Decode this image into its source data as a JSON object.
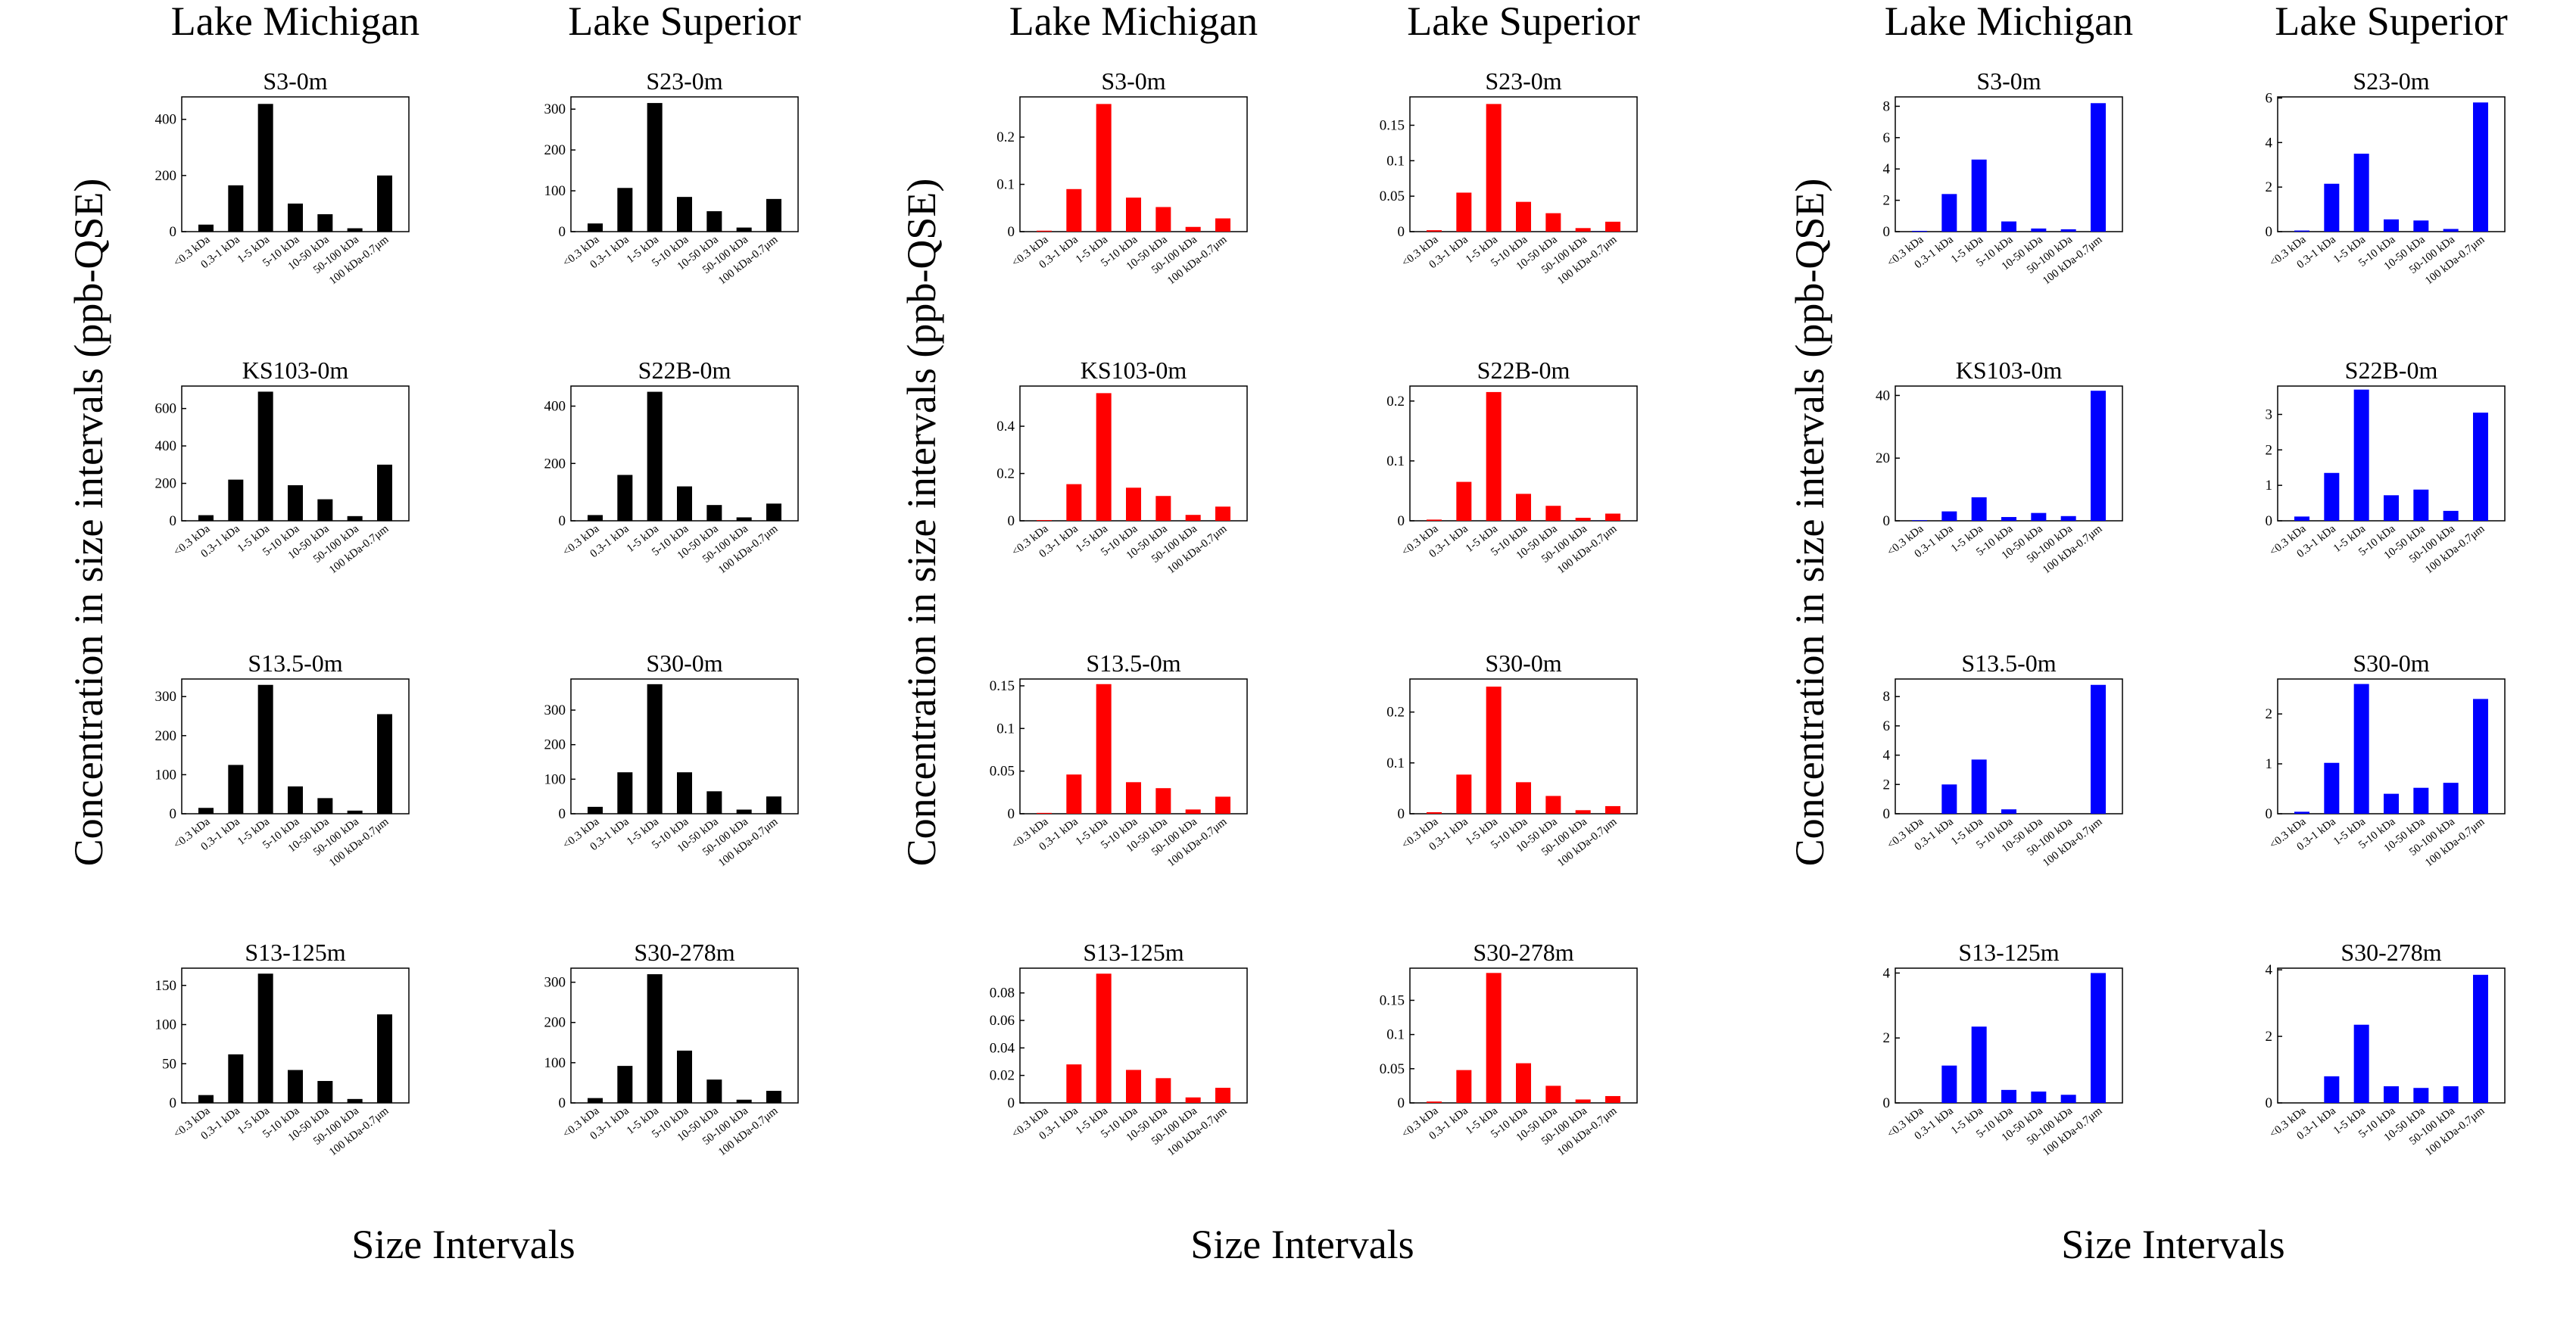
{
  "groups": [
    {
      "col_headers": [
        "Lake Michigan",
        "Lake Superior"
      ],
      "ylabel": "Concentration in size intervals (ppb-QSE)",
      "xlabel": "Size Intervals"
    },
    {
      "col_headers": [
        "Lake Michigan",
        "Lake Superior"
      ],
      "ylabel": "Concentration in size intervals (ppb-QSE)",
      "xlabel": "Size Intervals"
    },
    {
      "col_headers": [
        "Lake Michigan",
        "Lake Superior"
      ],
      "ylabel": "Concentration in size intervals (ppb-QSE)",
      "xlabel": "Size Intervals"
    }
  ],
  "colors": {
    "group1": "#000000",
    "group2": "#ff0000",
    "group3": "#0000ff"
  },
  "chart_data": [
    {
      "type": "bar",
      "group": 1,
      "lake": "Lake Michigan",
      "title": "S3-0m",
      "categories": [
        "<0.3 kDa",
        "0.3-1 kDa",
        "1-5 kDa",
        "5-10 kDa",
        "10-50 kDa",
        "50-100 kDa",
        "100 kDa-0.7μm"
      ],
      "values": [
        25,
        165,
        455,
        100,
        62,
        12,
        200
      ],
      "ylim": [
        0,
        480
      ],
      "yticks": [
        0,
        200,
        400
      ],
      "ytick_labels": [
        "0",
        "200",
        "400"
      ]
    },
    {
      "type": "bar",
      "group": 1,
      "lake": "Lake Superior",
      "title": "S23-0m",
      "categories": [
        "<0.3 kDa",
        "0.3-1 kDa",
        "1-5 kDa",
        "5-10 kDa",
        "10-50 kDa",
        "50-100 kDa",
        "100 kDa-0.7μm"
      ],
      "values": [
        20,
        107,
        315,
        85,
        50,
        10,
        80
      ],
      "ylim": [
        0,
        330
      ],
      "yticks": [
        0,
        100,
        200,
        300
      ],
      "ytick_labels": [
        "0",
        "100",
        "200",
        "300"
      ]
    },
    {
      "type": "bar",
      "group": 1,
      "lake": "Lake Michigan",
      "title": "KS103-0m",
      "categories": [
        "<0.3 kDa",
        "0.3-1 kDa",
        "1-5 kDa",
        "5-10 kDa",
        "10-50 kDa",
        "50-100 kDa",
        "100 kDa-0.7μm"
      ],
      "values": [
        30,
        220,
        690,
        190,
        115,
        25,
        300
      ],
      "ylim": [
        0,
        720
      ],
      "yticks": [
        0,
        200,
        400,
        600
      ],
      "ytick_labels": [
        "0",
        "200",
        "400",
        "600"
      ]
    },
    {
      "type": "bar",
      "group": 1,
      "lake": "Lake Superior",
      "title": "S22B-0m",
      "categories": [
        "<0.3 kDa",
        "0.3-1 kDa",
        "1-5 kDa",
        "5-10 kDa",
        "10-50 kDa",
        "50-100 kDa",
        "100 kDa-0.7μm"
      ],
      "values": [
        20,
        160,
        450,
        120,
        55,
        12,
        60
      ],
      "ylim": [
        0,
        470
      ],
      "yticks": [
        0,
        200,
        400
      ],
      "ytick_labels": [
        "0",
        "200",
        "400"
      ]
    },
    {
      "type": "bar",
      "group": 1,
      "lake": "Lake Michigan",
      "title": "S13.5-0m",
      "categories": [
        "<0.3 kDa",
        "0.3-1 kDa",
        "1-5 kDa",
        "5-10 kDa",
        "10-50 kDa",
        "50-100 kDa",
        "100 kDa-0.7μm"
      ],
      "values": [
        15,
        125,
        330,
        70,
        40,
        8,
        255
      ],
      "ylim": [
        0,
        345
      ],
      "yticks": [
        0,
        100,
        200,
        300
      ],
      "ytick_labels": [
        "0",
        "100",
        "200",
        "300"
      ]
    },
    {
      "type": "bar",
      "group": 1,
      "lake": "Lake Superior",
      "title": "S30-0m",
      "categories": [
        "<0.3 kDa",
        "0.3-1 kDa",
        "1-5 kDa",
        "5-10 kDa",
        "10-50 kDa",
        "50-100 kDa",
        "100 kDa-0.7μm"
      ],
      "values": [
        20,
        120,
        375,
        120,
        65,
        12,
        50
      ],
      "ylim": [
        0,
        390
      ],
      "yticks": [
        0,
        100,
        200,
        300
      ],
      "ytick_labels": [
        "0",
        "100",
        "200",
        "300"
      ]
    },
    {
      "type": "bar",
      "group": 1,
      "lake": "Lake Michigan",
      "title": "S13-125m",
      "categories": [
        "<0.3 kDa",
        "0.3-1 kDa",
        "1-5 kDa",
        "5-10 kDa",
        "10-50 kDa",
        "50-100 kDa",
        "100 kDa-0.7μm"
      ],
      "values": [
        10,
        62,
        165,
        42,
        28,
        5,
        113
      ],
      "ylim": [
        0,
        172
      ],
      "yticks": [
        0,
        50,
        100,
        150
      ],
      "ytick_labels": [
        "0",
        "50",
        "100",
        "150"
      ]
    },
    {
      "type": "bar",
      "group": 1,
      "lake": "Lake Superior",
      "title": "S30-278m",
      "categories": [
        "<0.3 kDa",
        "0.3-1 kDa",
        "1-5 kDa",
        "5-10 kDa",
        "10-50 kDa",
        "50-100 kDa",
        "100 kDa-0.7μm"
      ],
      "values": [
        12,
        92,
        320,
        130,
        58,
        8,
        30
      ],
      "ylim": [
        0,
        335
      ],
      "yticks": [
        0,
        100,
        200,
        300
      ],
      "ytick_labels": [
        "0",
        "100",
        "200",
        "300"
      ]
    },
    {
      "type": "bar",
      "group": 2,
      "lake": "Lake Michigan",
      "title": "S3-0m",
      "categories": [
        "<0.3 kDa",
        "0.3-1 kDa",
        "1-5 kDa",
        "5-10 kDa",
        "10-50 kDa",
        "50-100 kDa",
        "100 kDa-0.7μm"
      ],
      "values": [
        0.002,
        0.09,
        0.27,
        0.072,
        0.052,
        0.01,
        0.028
      ],
      "ylim": [
        0,
        0.285
      ],
      "yticks": [
        0,
        0.1,
        0.2
      ],
      "ytick_labels": [
        "0",
        "0.1",
        "0.2"
      ]
    },
    {
      "type": "bar",
      "group": 2,
      "lake": "Lake Superior",
      "title": "S23-0m",
      "categories": [
        "<0.3 kDa",
        "0.3-1 kDa",
        "1-5 kDa",
        "5-10 kDa",
        "10-50 kDa",
        "50-100 kDa",
        "100 kDa-0.7μm"
      ],
      "values": [
        0.002,
        0.055,
        0.18,
        0.042,
        0.026,
        0.005,
        0.014
      ],
      "ylim": [
        0,
        0.19
      ],
      "yticks": [
        0,
        0.05,
        0.1,
        0.15
      ],
      "ytick_labels": [
        "0",
        "0.05",
        "0.1",
        "0.15"
      ]
    },
    {
      "type": "bar",
      "group": 2,
      "lake": "Lake Michigan",
      "title": "KS103-0m",
      "categories": [
        "<0.3 kDa",
        "0.3-1 kDa",
        "1-5 kDa",
        "5-10 kDa",
        "10-50 kDa",
        "50-100 kDa",
        "100 kDa-0.7μm"
      ],
      "values": [
        0.003,
        0.155,
        0.54,
        0.14,
        0.105,
        0.025,
        0.06
      ],
      "ylim": [
        0,
        0.57
      ],
      "yticks": [
        0,
        0.2,
        0.4
      ],
      "ytick_labels": [
        "0",
        "0.2",
        "0.4"
      ]
    },
    {
      "type": "bar",
      "group": 2,
      "lake": "Lake Superior",
      "title": "S22B-0m",
      "categories": [
        "<0.3 kDa",
        "0.3-1 kDa",
        "1-5 kDa",
        "5-10 kDa",
        "10-50 kDa",
        "50-100 kDa",
        "100 kDa-0.7μm"
      ],
      "values": [
        0.002,
        0.065,
        0.215,
        0.045,
        0.025,
        0.005,
        0.012
      ],
      "ylim": [
        0,
        0.225
      ],
      "yticks": [
        0,
        0.1,
        0.2
      ],
      "ytick_labels": [
        "0",
        "0.1",
        "0.2"
      ]
    },
    {
      "type": "bar",
      "group": 2,
      "lake": "Lake Michigan",
      "title": "S13.5-0m",
      "categories": [
        "<0.3 kDa",
        "0.3-1 kDa",
        "1-5 kDa",
        "5-10 kDa",
        "10-50 kDa",
        "50-100 kDa",
        "100 kDa-0.7μm"
      ],
      "values": [
        0.001,
        0.046,
        0.152,
        0.037,
        0.03,
        0.005,
        0.02
      ],
      "ylim": [
        0,
        0.158
      ],
      "yticks": [
        0,
        0.05,
        0.1,
        0.15
      ],
      "ytick_labels": [
        "0",
        "0.05",
        "0.1",
        "0.15"
      ]
    },
    {
      "type": "bar",
      "group": 2,
      "lake": "Lake Superior",
      "title": "S30-0m",
      "categories": [
        "<0.3 kDa",
        "0.3-1 kDa",
        "1-5 kDa",
        "5-10 kDa",
        "10-50 kDa",
        "50-100 kDa",
        "100 kDa-0.7μm"
      ],
      "values": [
        0.003,
        0.077,
        0.25,
        0.062,
        0.035,
        0.007,
        0.015
      ],
      "ylim": [
        0,
        0.265
      ],
      "yticks": [
        0,
        0.1,
        0.2
      ],
      "ytick_labels": [
        "0",
        "0.1",
        "0.2"
      ]
    },
    {
      "type": "bar",
      "group": 2,
      "lake": "Lake Michigan",
      "title": "S13-125m",
      "categories": [
        "<0.3 kDa",
        "0.3-1 kDa",
        "1-5 kDa",
        "5-10 kDa",
        "10-50 kDa",
        "50-100 kDa",
        "100 kDa-0.7μm"
      ],
      "values": [
        0,
        0.028,
        0.094,
        0.024,
        0.018,
        0.004,
        0.011
      ],
      "ylim": [
        0,
        0.098
      ],
      "yticks": [
        0,
        0.02,
        0.04,
        0.06,
        0.08
      ],
      "ytick_labels": [
        "0",
        "0.02",
        "0.04",
        "0.06",
        "0.08"
      ]
    },
    {
      "type": "bar",
      "group": 2,
      "lake": "Lake Superior",
      "title": "S30-278m",
      "categories": [
        "<0.3 kDa",
        "0.3-1 kDa",
        "1-5 kDa",
        "5-10 kDa",
        "10-50 kDa",
        "50-100 kDa",
        "100 kDa-0.7μm"
      ],
      "values": [
        0.002,
        0.048,
        0.19,
        0.058,
        0.025,
        0.005,
        0.01
      ],
      "ylim": [
        0,
        0.197
      ],
      "yticks": [
        0,
        0.05,
        0.1,
        0.15
      ],
      "ytick_labels": [
        "0",
        "0.05",
        "0.1",
        "0.15"
      ]
    },
    {
      "type": "bar",
      "group": 3,
      "lake": "Lake Michigan",
      "title": "S3-0m",
      "categories": [
        "<0.3 kDa",
        "0.3-1 kDa",
        "1-5 kDa",
        "5-10 kDa",
        "10-50 kDa",
        "50-100 kDa",
        "100 kDa-0.7μm"
      ],
      "values": [
        0.05,
        2.4,
        4.6,
        0.65,
        0.2,
        0.15,
        8.2
      ],
      "ylim": [
        0,
        8.6
      ],
      "yticks": [
        0,
        2,
        4,
        6,
        8
      ],
      "ytick_labels": [
        "0",
        "2",
        "4",
        "6",
        "8"
      ]
    },
    {
      "type": "bar",
      "group": 3,
      "lake": "Lake Superior",
      "title": "S23-0m",
      "categories": [
        "<0.3 kDa",
        "0.3-1 kDa",
        "1-5 kDa",
        "5-10 kDa",
        "10-50 kDa",
        "50-100 kDa",
        "100 kDa-0.7μm"
      ],
      "values": [
        0.05,
        2.15,
        3.5,
        0.55,
        0.5,
        0.12,
        5.8
      ],
      "ylim": [
        0,
        6.05
      ],
      "yticks": [
        0,
        2,
        4,
        6
      ],
      "ytick_labels": [
        "0",
        "2",
        "4",
        "6"
      ]
    },
    {
      "type": "bar",
      "group": 3,
      "lake": "Lake Michigan",
      "title": "KS103-0m",
      "categories": [
        "<0.3 kDa",
        "0.3-1 kDa",
        "1-5 kDa",
        "5-10 kDa",
        "10-50 kDa",
        "50-100 kDa",
        "100 kDa-0.7μm"
      ],
      "values": [
        0.2,
        3,
        7.5,
        1.2,
        2.5,
        1.5,
        41.5
      ],
      "ylim": [
        0,
        43
      ],
      "yticks": [
        0,
        20,
        40
      ],
      "ytick_labels": [
        "0",
        "20",
        "40"
      ]
    },
    {
      "type": "bar",
      "group": 3,
      "lake": "Lake Superior",
      "title": "S22B-0m",
      "categories": [
        "<0.3 kDa",
        "0.3-1 kDa",
        "1-5 kDa",
        "5-10 kDa",
        "10-50 kDa",
        "50-100 kDa",
        "100 kDa-0.7μm"
      ],
      "values": [
        0.12,
        1.35,
        3.7,
        0.72,
        0.88,
        0.28,
        3.05
      ],
      "ylim": [
        0,
        3.8
      ],
      "yticks": [
        0,
        1,
        2,
        3
      ],
      "ytick_labels": [
        "0",
        "1",
        "2",
        "3"
      ]
    },
    {
      "type": "bar",
      "group": 3,
      "lake": "Lake Michigan",
      "title": "S13.5-0m",
      "categories": [
        "<0.3 kDa",
        "0.3-1 kDa",
        "1-5 kDa",
        "5-10 kDa",
        "10-50 kDa",
        "50-100 kDa",
        "100 kDa-0.7μm"
      ],
      "values": [
        0,
        2,
        3.7,
        0.3,
        0,
        0,
        8.8
      ],
      "ylim": [
        0,
        9.2
      ],
      "yticks": [
        0,
        2,
        4,
        6,
        8
      ],
      "ytick_labels": [
        "0",
        "2",
        "4",
        "6",
        "8"
      ]
    },
    {
      "type": "bar",
      "group": 3,
      "lake": "Lake Superior",
      "title": "S30-0m",
      "categories": [
        "<0.3 kDa",
        "0.3-1 kDa",
        "1-5 kDa",
        "5-10 kDa",
        "10-50 kDa",
        "50-100 kDa",
        "100 kDa-0.7μm"
      ],
      "values": [
        0.04,
        1.02,
        2.6,
        0.4,
        0.52,
        0.62,
        2.3
      ],
      "ylim": [
        0,
        2.7
      ],
      "yticks": [
        0,
        1,
        2
      ],
      "ytick_labels": [
        "0",
        "1",
        "2"
      ]
    },
    {
      "type": "bar",
      "group": 3,
      "lake": "Lake Michigan",
      "title": "S13-125m",
      "categories": [
        "<0.3 kDa",
        "0.3-1 kDa",
        "1-5 kDa",
        "5-10 kDa",
        "10-50 kDa",
        "50-100 kDa",
        "100 kDa-0.7μm"
      ],
      "values": [
        0,
        1.15,
        2.35,
        0.4,
        0.35,
        0.25,
        4
      ],
      "ylim": [
        0,
        4.15
      ],
      "yticks": [
        0,
        2,
        4
      ],
      "ytick_labels": [
        "0",
        "2",
        "4"
      ]
    },
    {
      "type": "bar",
      "group": 3,
      "lake": "Lake Superior",
      "title": "S30-278m",
      "categories": [
        "<0.3 kDa",
        "0.3-1 kDa",
        "1-5 kDa",
        "5-10 kDa",
        "10-50 kDa",
        "50-100 kDa",
        "100 kDa-0.7μm"
      ],
      "values": [
        0,
        0.8,
        2.35,
        0.5,
        0.45,
        0.5,
        3.85
      ],
      "ylim": [
        0,
        4.05
      ],
      "yticks": [
        0,
        2,
        4
      ],
      "ytick_labels": [
        "0",
        "2",
        "4"
      ]
    }
  ]
}
